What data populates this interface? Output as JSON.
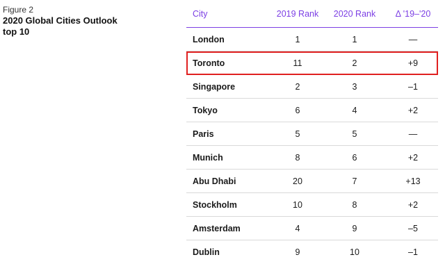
{
  "figure": {
    "label": "Figure 2",
    "title_line1": "2020 Global Cities Outlook",
    "title_line2": "top 10"
  },
  "table": {
    "headers": {
      "city": "City",
      "rank_2019": "2019 Rank",
      "rank_2020": "2020 Rank",
      "delta": "Δ '19–'20"
    },
    "rows": [
      {
        "city": "London",
        "rank_2019": "1",
        "rank_2020": "1",
        "delta": "—"
      },
      {
        "city": "Toronto",
        "rank_2019": "11",
        "rank_2020": "2",
        "delta": "+9"
      },
      {
        "city": "Singapore",
        "rank_2019": "2",
        "rank_2020": "3",
        "delta": "–1"
      },
      {
        "city": "Tokyo",
        "rank_2019": "6",
        "rank_2020": "4",
        "delta": "+2"
      },
      {
        "city": "Paris",
        "rank_2019": "5",
        "rank_2020": "5",
        "delta": "—"
      },
      {
        "city": "Munich",
        "rank_2019": "8",
        "rank_2020": "6",
        "delta": "+2"
      },
      {
        "city": "Abu Dhabi",
        "rank_2019": "20",
        "rank_2020": "7",
        "delta": "+13"
      },
      {
        "city": "Stockholm",
        "rank_2019": "10",
        "rank_2020": "8",
        "delta": "+2"
      },
      {
        "city": "Amsterdam",
        "rank_2019": "4",
        "rank_2020": "9",
        "delta": "–5"
      },
      {
        "city": "Dublin",
        "rank_2019": "9",
        "rank_2020": "10",
        "delta": "–1"
      }
    ],
    "highlighted_city": "Toronto",
    "colors": {
      "header_text": "#7c3fe4",
      "header_rule": "#7c3fe4",
      "highlight_box": "#e02020",
      "row_divider": "#d9d9d9"
    }
  }
}
